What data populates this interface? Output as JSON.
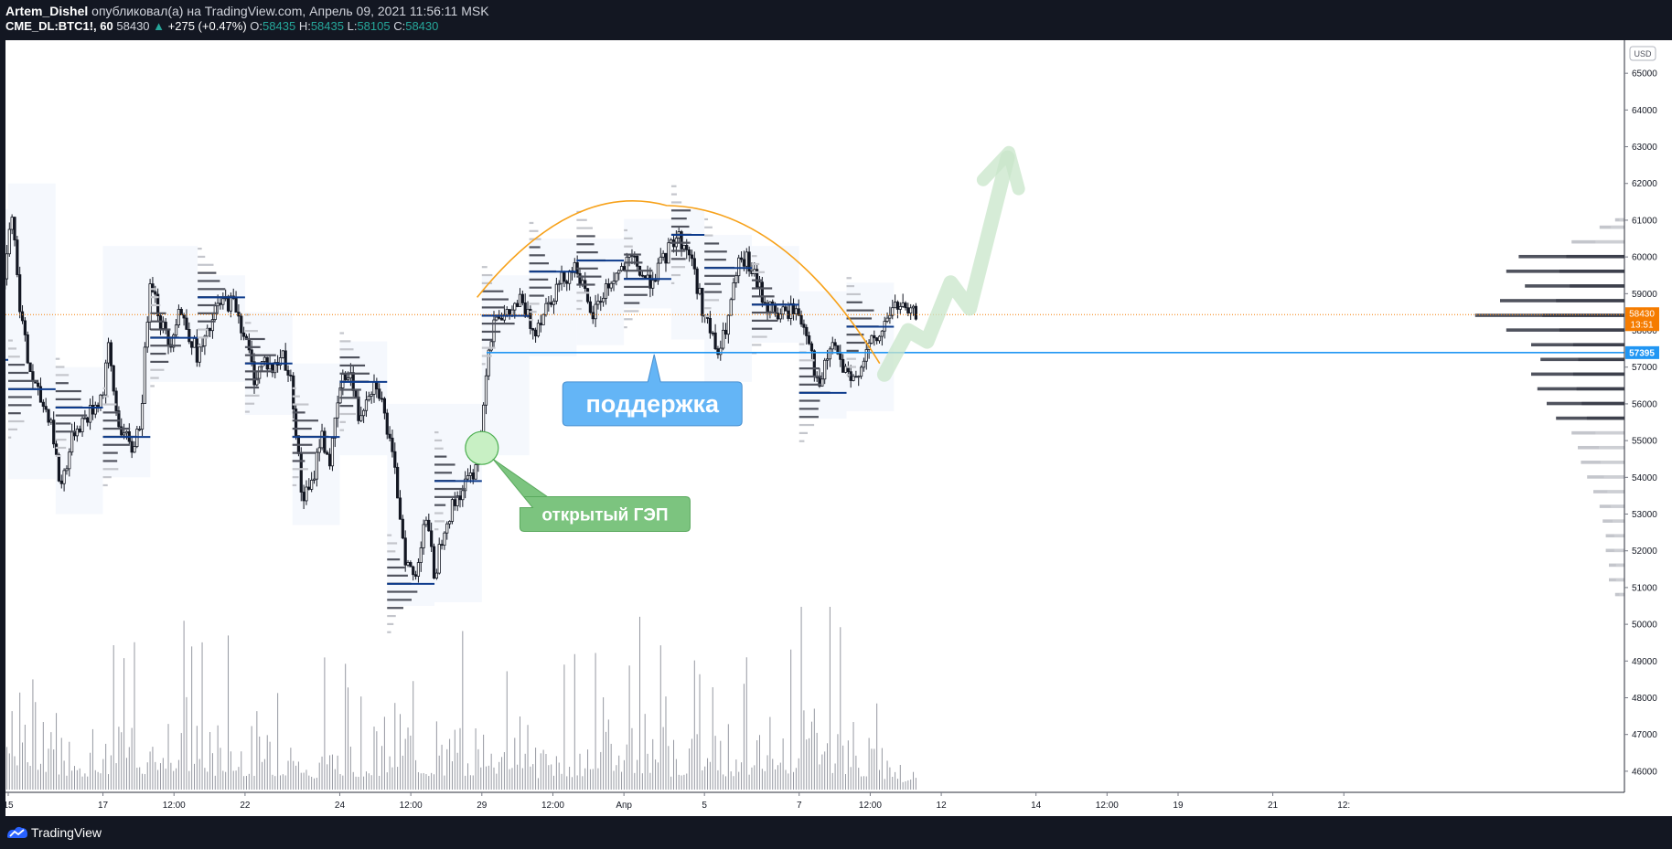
{
  "header": {
    "author": "Artem_Dishel",
    "published_text": "опубликовал(а) на TradingView.com, Апрель 09, 2021 11:56:11 MSK",
    "symbol": "CME_DL:BTC1!, 60",
    "last": "58430",
    "change": "+275 (+0.47%)",
    "o_label": "O:",
    "o_value": "58435",
    "h_label": "H:",
    "h_value": "58435",
    "l_label": "L:",
    "l_value": "58105",
    "c_label": "C:",
    "c_value": "58430"
  },
  "footer": {
    "brand": "TradingView"
  },
  "colors": {
    "background": "#131722",
    "chart_bg": "#ffffff",
    "candle": "#131722",
    "volume": "#9598a1",
    "poc": "#0d3b8c",
    "profile_dark": "#50535e",
    "profile_light": "#c4c6cc",
    "arc": "#f7a21b",
    "support_line": "#2196f3",
    "last_price_badge": "#f57c00",
    "support_badge": "#2196f3",
    "support_callout": "#64b5f6",
    "gap_callout": "#7cc47f",
    "arrow": "#c8e6c9"
  },
  "chart_data": {
    "type": "candlestick",
    "symbol": "CME_DL:BTC1!",
    "timeframe": "60",
    "currency": "USD",
    "y_range": [
      45500,
      65800
    ],
    "y_ticks": [
      46000,
      47000,
      48000,
      49000,
      50000,
      51000,
      52000,
      53000,
      54000,
      55000,
      56000,
      57000,
      58000,
      59000,
      60000,
      61000,
      62000,
      63000,
      64000,
      65000
    ],
    "x_range": [
      0,
      300
    ],
    "x_ticks": [
      {
        "label": "15",
        "x": 8
      },
      {
        "label": "17",
        "x": 28
      },
      {
        "label": "12:00",
        "x": 43
      },
      {
        "label": "22",
        "x": 58
      },
      {
        "label": "24",
        "x": 78
      },
      {
        "label": "12:00",
        "x": 93
      },
      {
        "label": "29",
        "x": 108
      },
      {
        "label": "12:00",
        "x": 123
      },
      {
        "label": "Апр",
        "x": 138
      },
      {
        "label": "5",
        "x": 155
      },
      {
        "label": "7",
        "x": 175
      },
      {
        "label": "12:00",
        "x": 190
      },
      {
        "label": "12",
        "x": 205
      },
      {
        "label": "14",
        "x": 225
      },
      {
        "label": "12:00",
        "x": 240
      },
      {
        "label": "19",
        "x": 255
      },
      {
        "label": "21",
        "x": 275
      },
      {
        "label": "12:",
        "x": 290
      }
    ],
    "last_bar_x": 200,
    "price_path": [
      [
        0,
        57300
      ],
      [
        3,
        56600
      ],
      [
        6,
        58200
      ],
      [
        8,
        60600
      ],
      [
        9,
        61300
      ],
      [
        10,
        59200
      ],
      [
        12,
        57200
      ],
      [
        14,
        56300
      ],
      [
        17,
        55600
      ],
      [
        19,
        53700
      ],
      [
        22,
        55300
      ],
      [
        25,
        55700
      ],
      [
        28,
        56300
      ],
      [
        29,
        57600
      ],
      [
        31,
        55600
      ],
      [
        34,
        54700
      ],
      [
        36,
        55600
      ],
      [
        38,
        59600
      ],
      [
        40,
        58300
      ],
      [
        42,
        57600
      ],
      [
        44,
        58600
      ],
      [
        46,
        58000
      ],
      [
        48,
        57300
      ],
      [
        50,
        57800
      ],
      [
        52,
        58600
      ],
      [
        54,
        58800
      ],
      [
        56,
        58700
      ],
      [
        58,
        57800
      ],
      [
        60,
        56700
      ],
      [
        62,
        57200
      ],
      [
        64,
        56900
      ],
      [
        66,
        57400
      ],
      [
        68,
        56400
      ],
      [
        70,
        53400
      ],
      [
        72,
        53700
      ],
      [
        74,
        55200
      ],
      [
        76,
        54400
      ],
      [
        78,
        56400
      ],
      [
        80,
        57000
      ],
      [
        82,
        55600
      ],
      [
        84,
        56400
      ],
      [
        86,
        56600
      ],
      [
        88,
        55300
      ],
      [
        90,
        53800
      ],
      [
        92,
        51700
      ],
      [
        94,
        51200
      ],
      [
        96,
        53100
      ],
      [
        98,
        51300
      ],
      [
        100,
        52700
      ],
      [
        103,
        53500
      ],
      [
        106,
        54100
      ],
      [
        108,
        55300
      ],
      [
        109,
        57200
      ],
      [
        111,
        58600
      ],
      [
        113,
        58300
      ],
      [
        116,
        58800
      ],
      [
        119,
        58000
      ],
      [
        122,
        58800
      ],
      [
        125,
        59400
      ],
      [
        128,
        59800
      ],
      [
        131,
        58300
      ],
      [
        134,
        59100
      ],
      [
        137,
        59600
      ],
      [
        140,
        59900
      ],
      [
        143,
        59300
      ],
      [
        146,
        59800
      ],
      [
        149,
        60600
      ],
      [
        152,
        60100
      ],
      [
        154,
        58900
      ],
      [
        156,
        58000
      ],
      [
        158,
        57300
      ],
      [
        160,
        58300
      ],
      [
        162,
        59700
      ],
      [
        164,
        59900
      ],
      [
        166,
        59300
      ],
      [
        168,
        58700
      ],
      [
        171,
        58400
      ],
      [
        174,
        58600
      ],
      [
        177,
        57900
      ],
      [
        179,
        56300
      ],
      [
        182,
        57700
      ],
      [
        184,
        57000
      ],
      [
        186,
        56500
      ],
      [
        188,
        57100
      ],
      [
        190,
        57600
      ],
      [
        192,
        57800
      ],
      [
        194,
        58500
      ],
      [
        196,
        58700
      ],
      [
        198,
        58400
      ],
      [
        200,
        58430
      ]
    ],
    "volume_envelope": [
      [
        0,
        1200
      ],
      [
        10,
        2400
      ],
      [
        20,
        1500
      ],
      [
        30,
        1300
      ],
      [
        40,
        1700
      ],
      [
        44,
        2100
      ],
      [
        50,
        1400
      ],
      [
        60,
        1500
      ],
      [
        70,
        1200
      ],
      [
        80,
        1300
      ],
      [
        90,
        1600
      ],
      [
        100,
        1300
      ],
      [
        110,
        1500
      ],
      [
        116,
        1800
      ],
      [
        120,
        1100
      ],
      [
        125,
        1200
      ],
      [
        130,
        1400
      ],
      [
        137,
        1900
      ],
      [
        145,
        1300
      ],
      [
        150,
        1500
      ],
      [
        160,
        1400
      ],
      [
        170,
        1600
      ],
      [
        175,
        1800
      ],
      [
        178,
        2800
      ],
      [
        182,
        1800
      ],
      [
        190,
        1200
      ],
      [
        196,
        900
      ],
      [
        200,
        500
      ]
    ],
    "volume_max": 3000,
    "session_pocs": [
      {
        "x0": 0,
        "x1": 8,
        "price": 57200
      },
      {
        "x0": 8,
        "x1": 18,
        "price": 56400
      },
      {
        "x0": 18,
        "x1": 28,
        "price": 55900
      },
      {
        "x0": 28,
        "x1": 38,
        "price": 55100
      },
      {
        "x0": 38,
        "x1": 48,
        "price": 57800
      },
      {
        "x0": 48,
        "x1": 58,
        "price": 58900
      },
      {
        "x0": 58,
        "x1": 68,
        "price": 57100
      },
      {
        "x0": 68,
        "x1": 78,
        "price": 55100
      },
      {
        "x0": 78,
        "x1": 88,
        "price": 56600
      },
      {
        "x0": 88,
        "x1": 98,
        "price": 51100
      },
      {
        "x0": 98,
        "x1": 108,
        "price": 53900
      },
      {
        "x0": 108,
        "x1": 118,
        "price": 58400
      },
      {
        "x0": 118,
        "x1": 128,
        "price": 59600
      },
      {
        "x0": 128,
        "x1": 138,
        "price": 59900
      },
      {
        "x0": 138,
        "x1": 148,
        "price": 59400
      },
      {
        "x0": 148,
        "x1": 155,
        "price": 60600
      },
      {
        "x0": 155,
        "x1": 165,
        "price": 59700
      },
      {
        "x0": 165,
        "x1": 175,
        "price": 58700
      },
      {
        "x0": 175,
        "x1": 185,
        "price": 56300
      },
      {
        "x0": 185,
        "x1": 195,
        "price": 58100
      }
    ],
    "volume_profile": [
      {
        "price": 50800,
        "len": 3
      },
      {
        "price": 51200,
        "len": 5
      },
      {
        "price": 51600,
        "len": 5
      },
      {
        "price": 52000,
        "len": 6
      },
      {
        "price": 52400,
        "len": 6
      },
      {
        "price": 52800,
        "len": 7
      },
      {
        "price": 53200,
        "len": 8
      },
      {
        "price": 53600,
        "len": 10
      },
      {
        "price": 54000,
        "len": 12
      },
      {
        "price": 54400,
        "len": 14
      },
      {
        "price": 54800,
        "len": 15
      },
      {
        "price": 55200,
        "len": 17
      },
      {
        "price": 55600,
        "len": 22
      },
      {
        "price": 56000,
        "len": 25
      },
      {
        "price": 56400,
        "len": 28
      },
      {
        "price": 56800,
        "len": 30
      },
      {
        "price": 57200,
        "len": 27
      },
      {
        "price": 57600,
        "len": 30
      },
      {
        "price": 58000,
        "len": 38
      },
      {
        "price": 58400,
        "len": 48
      },
      {
        "price": 58800,
        "len": 40
      },
      {
        "price": 59200,
        "len": 32
      },
      {
        "price": 59600,
        "len": 38
      },
      {
        "price": 60000,
        "len": 34
      },
      {
        "price": 60400,
        "len": 17
      },
      {
        "price": 60800,
        "len": 8
      },
      {
        "price": 61000,
        "len": 3
      }
    ],
    "volume_profile_max": 50,
    "volume_profile_value_area": [
      55600,
      60200
    ],
    "last_price": {
      "value": 58430,
      "label": "58430",
      "countdown": "13:51"
    },
    "support": {
      "value": 57395,
      "label": "57395",
      "x_start": 109
    },
    "arc": {
      "x_start": 107,
      "x_peak": 147,
      "x_end": 192,
      "y_start": 58900,
      "y_peak": 61400,
      "y_end": 57100
    },
    "trend_arrow": {
      "points": [
        [
          193,
          56800
        ],
        [
          198,
          58000
        ],
        [
          202,
          57700
        ],
        [
          207,
          59300
        ],
        [
          211,
          58600
        ],
        [
          219,
          62700
        ]
      ]
    },
    "gap_marker": {
      "x": 108,
      "price": 54800
    },
    "annotations": [
      {
        "text": "поддержка",
        "x": 144,
        "price": 56000
      },
      {
        "text": "открытый ГЭП",
        "x": 134,
        "price": 53000
      }
    ]
  }
}
